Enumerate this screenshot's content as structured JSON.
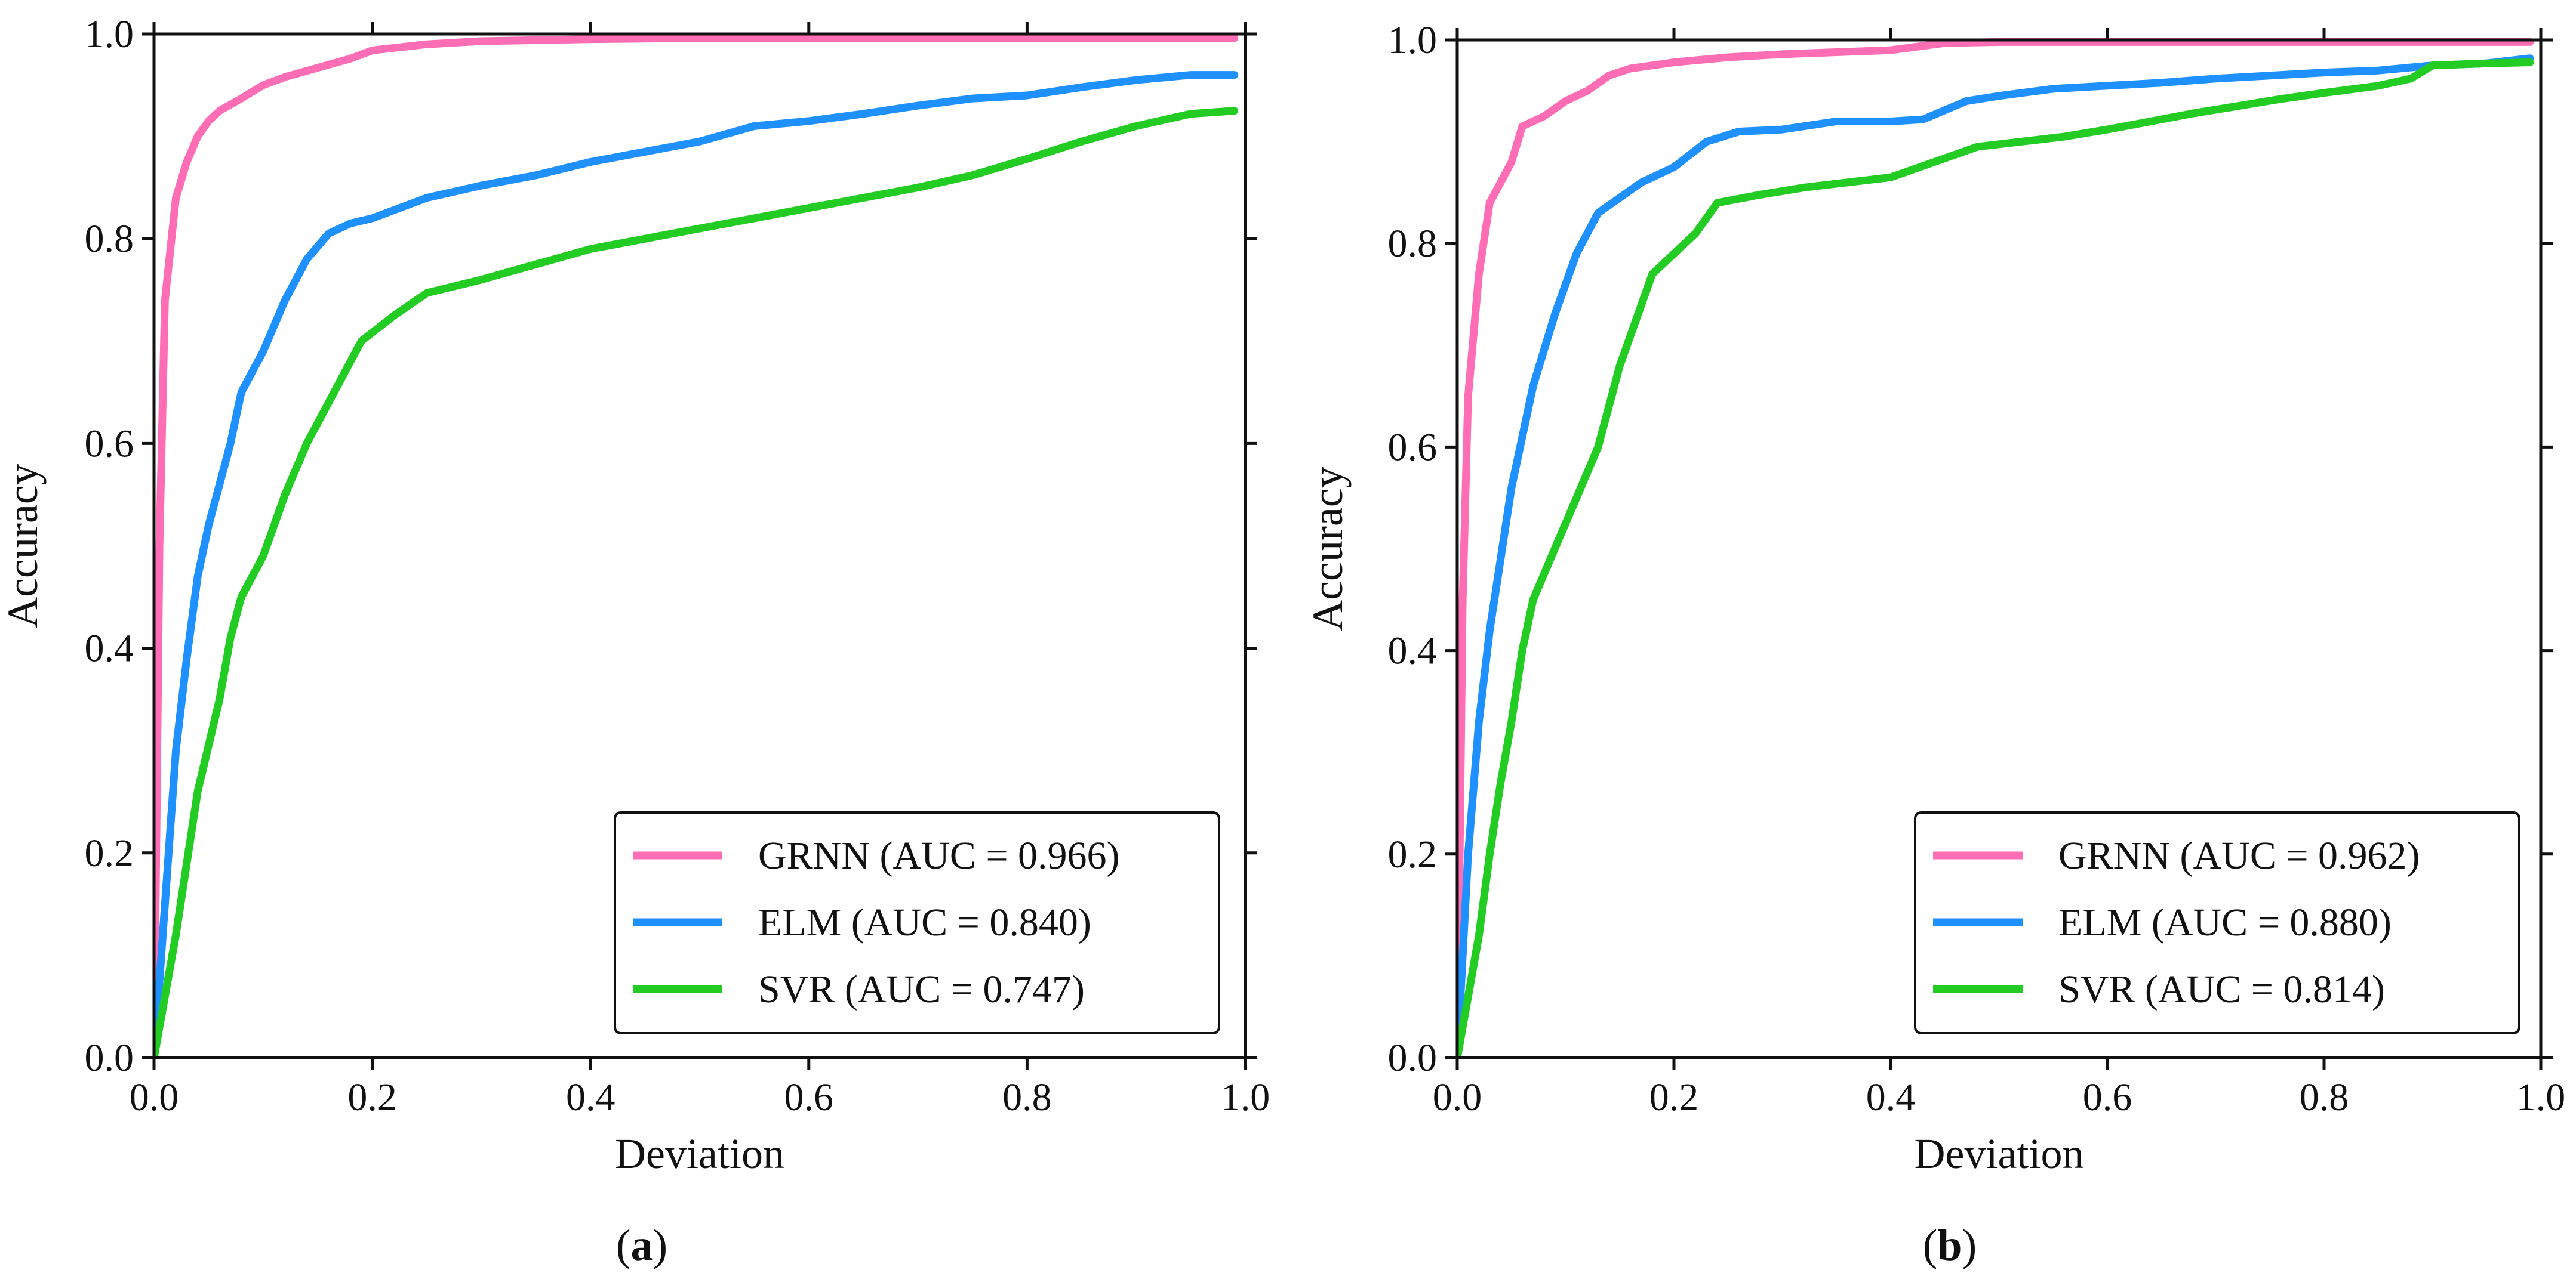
{
  "chart_data": [
    {
      "type": "line",
      "panel_label": "a",
      "xlabel": "Deviation",
      "ylabel": "Accuracy",
      "xlim": [
        0,
        1
      ],
      "ylim": [
        0,
        1
      ],
      "xticks": [
        "0.0",
        "0.2",
        "0.4",
        "0.6",
        "0.8",
        "1.0"
      ],
      "yticks": [
        "0.0",
        "0.2",
        "0.4",
        "0.6",
        "0.8",
        "1.0"
      ],
      "grid": false,
      "legend_position": "lower-right",
      "series": [
        {
          "name": "GRNN (AUC = 0.966)",
          "color": "#ff6eb4",
          "points": [
            [
              0,
              0
            ],
            [
              0.005,
              0.5
            ],
            [
              0.01,
              0.74
            ],
            [
              0.02,
              0.84
            ],
            [
              0.03,
              0.875
            ],
            [
              0.04,
              0.9
            ],
            [
              0.05,
              0.915
            ],
            [
              0.06,
              0.925
            ],
            [
              0.08,
              0.937
            ],
            [
              0.1,
              0.95
            ],
            [
              0.12,
              0.958
            ],
            [
              0.15,
              0.967
            ],
            [
              0.18,
              0.976
            ],
            [
              0.2,
              0.984
            ],
            [
              0.25,
              0.99
            ],
            [
              0.3,
              0.993
            ],
            [
              0.4,
              0.995
            ],
            [
              0.5,
              0.996
            ],
            [
              0.7,
              0.996
            ],
            [
              0.99,
              0.996
            ]
          ]
        },
        {
          "name": "ELM (AUC = 0.840)",
          "color": "#1e90ff",
          "points": [
            [
              0,
              0
            ],
            [
              0.01,
              0.15
            ],
            [
              0.02,
              0.3
            ],
            [
              0.03,
              0.39
            ],
            [
              0.04,
              0.47
            ],
            [
              0.05,
              0.52
            ],
            [
              0.07,
              0.6
            ],
            [
              0.08,
              0.65
            ],
            [
              0.1,
              0.69
            ],
            [
              0.12,
              0.74
            ],
            [
              0.14,
              0.78
            ],
            [
              0.16,
              0.805
            ],
            [
              0.18,
              0.815
            ],
            [
              0.2,
              0.82
            ],
            [
              0.25,
              0.84
            ],
            [
              0.3,
              0.852
            ],
            [
              0.35,
              0.862
            ],
            [
              0.4,
              0.875
            ],
            [
              0.45,
              0.885
            ],
            [
              0.5,
              0.895
            ],
            [
              0.55,
              0.91
            ],
            [
              0.6,
              0.915
            ],
            [
              0.65,
              0.922
            ],
            [
              0.7,
              0.93
            ],
            [
              0.75,
              0.937
            ],
            [
              0.8,
              0.94
            ],
            [
              0.85,
              0.948
            ],
            [
              0.9,
              0.955
            ],
            [
              0.95,
              0.96
            ],
            [
              0.99,
              0.96
            ]
          ]
        },
        {
          "name": "SVR (AUC = 0.747)",
          "color": "#22cc22",
          "points": [
            [
              0,
              0
            ],
            [
              0.02,
              0.12
            ],
            [
              0.04,
              0.26
            ],
            [
              0.06,
              0.35
            ],
            [
              0.07,
              0.41
            ],
            [
              0.08,
              0.45
            ],
            [
              0.1,
              0.49
            ],
            [
              0.12,
              0.55
            ],
            [
              0.14,
              0.6
            ],
            [
              0.16,
              0.64
            ],
            [
              0.18,
              0.68
            ],
            [
              0.19,
              0.7
            ],
            [
              0.22,
              0.725
            ],
            [
              0.25,
              0.747
            ],
            [
              0.3,
              0.76
            ],
            [
              0.35,
              0.775
            ],
            [
              0.4,
              0.79
            ],
            [
              0.45,
              0.8
            ],
            [
              0.5,
              0.81
            ],
            [
              0.55,
              0.82
            ],
            [
              0.6,
              0.83
            ],
            [
              0.65,
              0.84
            ],
            [
              0.7,
              0.85
            ],
            [
              0.75,
              0.862
            ],
            [
              0.8,
              0.878
            ],
            [
              0.85,
              0.895
            ],
            [
              0.9,
              0.91
            ],
            [
              0.95,
              0.922
            ],
            [
              0.99,
              0.925
            ]
          ]
        }
      ]
    },
    {
      "type": "line",
      "panel_label": "b",
      "xlabel": "Deviation",
      "ylabel": "Accuracy",
      "xlim": [
        0,
        1
      ],
      "ylim": [
        0,
        1
      ],
      "xticks": [
        "0.0",
        "0.2",
        "0.4",
        "0.6",
        "0.8",
        "1.0"
      ],
      "yticks": [
        "0.0",
        "0.2",
        "0.4",
        "0.6",
        "0.8",
        "1.0"
      ],
      "grid": false,
      "legend_position": "lower-right",
      "series": [
        {
          "name": "GRNN (AUC = 0.962)",
          "color": "#ff6eb4",
          "points": [
            [
              0,
              0
            ],
            [
              0.005,
              0.45
            ],
            [
              0.01,
              0.65
            ],
            [
              0.02,
              0.77
            ],
            [
              0.03,
              0.84
            ],
            [
              0.04,
              0.86
            ],
            [
              0.05,
              0.88
            ],
            [
              0.06,
              0.915
            ],
            [
              0.08,
              0.925
            ],
            [
              0.1,
              0.94
            ],
            [
              0.12,
              0.95
            ],
            [
              0.14,
              0.965
            ],
            [
              0.16,
              0.972
            ],
            [
              0.2,
              0.978
            ],
            [
              0.25,
              0.983
            ],
            [
              0.3,
              0.986
            ],
            [
              0.35,
              0.988
            ],
            [
              0.4,
              0.99
            ],
            [
              0.45,
              0.997
            ],
            [
              0.5,
              0.998
            ],
            [
              0.7,
              0.998
            ],
            [
              0.99,
              0.998
            ]
          ]
        },
        {
          "name": "ELM (AUC = 0.880)",
          "color": "#1e90ff",
          "points": [
            [
              0,
              0
            ],
            [
              0.01,
              0.2
            ],
            [
              0.02,
              0.33
            ],
            [
              0.03,
              0.42
            ],
            [
              0.04,
              0.49
            ],
            [
              0.05,
              0.56
            ],
            [
              0.07,
              0.66
            ],
            [
              0.09,
              0.73
            ],
            [
              0.11,
              0.79
            ],
            [
              0.13,
              0.83
            ],
            [
              0.15,
              0.845
            ],
            [
              0.17,
              0.86
            ],
            [
              0.2,
              0.875
            ],
            [
              0.23,
              0.9
            ],
            [
              0.26,
              0.91
            ],
            [
              0.3,
              0.912
            ],
            [
              0.35,
              0.92
            ],
            [
              0.4,
              0.92
            ],
            [
              0.43,
              0.922
            ],
            [
              0.47,
              0.94
            ],
            [
              0.5,
              0.945
            ],
            [
              0.55,
              0.952
            ],
            [
              0.6,
              0.955
            ],
            [
              0.65,
              0.958
            ],
            [
              0.7,
              0.962
            ],
            [
              0.75,
              0.965
            ],
            [
              0.8,
              0.968
            ],
            [
              0.85,
              0.97
            ],
            [
              0.9,
              0.975
            ],
            [
              0.95,
              0.977
            ],
            [
              0.99,
              0.982
            ]
          ]
        },
        {
          "name": "SVR (AUC = 0.814)",
          "color": "#22cc22",
          "points": [
            [
              0,
              0
            ],
            [
              0.01,
              0.06
            ],
            [
              0.02,
              0.12
            ],
            [
              0.03,
              0.2
            ],
            [
              0.04,
              0.27
            ],
            [
              0.05,
              0.33
            ],
            [
              0.06,
              0.4
            ],
            [
              0.07,
              0.45
            ],
            [
              0.09,
              0.5
            ],
            [
              0.11,
              0.55
            ],
            [
              0.13,
              0.6
            ],
            [
              0.15,
              0.68
            ],
            [
              0.17,
              0.74
            ],
            [
              0.18,
              0.77
            ],
            [
              0.2,
              0.79
            ],
            [
              0.22,
              0.81
            ],
            [
              0.24,
              0.84
            ],
            [
              0.28,
              0.848
            ],
            [
              0.32,
              0.855
            ],
            [
              0.36,
              0.86
            ],
            [
              0.4,
              0.865
            ],
            [
              0.44,
              0.88
            ],
            [
              0.48,
              0.895
            ],
            [
              0.52,
              0.9
            ],
            [
              0.56,
              0.905
            ],
            [
              0.6,
              0.912
            ],
            [
              0.64,
              0.92
            ],
            [
              0.68,
              0.928
            ],
            [
              0.72,
              0.935
            ],
            [
              0.76,
              0.942
            ],
            [
              0.8,
              0.948
            ],
            [
              0.85,
              0.955
            ],
            [
              0.88,
              0.962
            ],
            [
              0.9,
              0.975
            ],
            [
              0.95,
              0.977
            ],
            [
              0.99,
              0.978
            ]
          ]
        }
      ]
    }
  ]
}
